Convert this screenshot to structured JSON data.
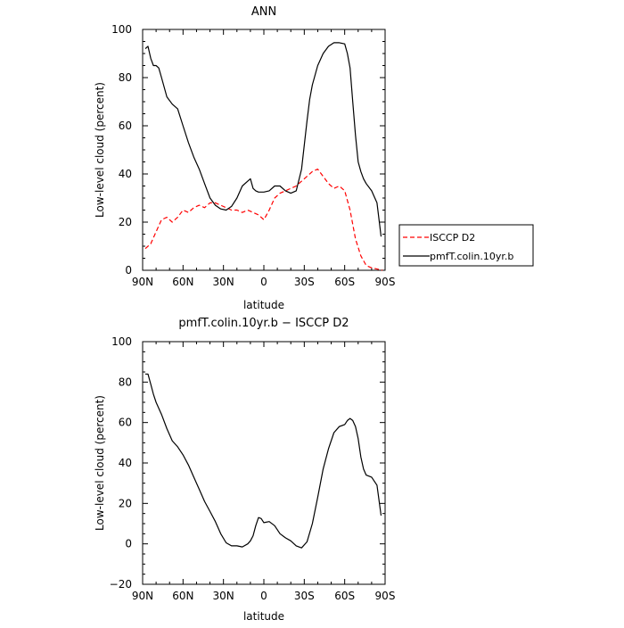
{
  "chart_data": [
    {
      "type": "line",
      "title": "ANN",
      "xlabel": "latitude",
      "ylabel": "Low-level cloud (percent)",
      "xlim": [
        90,
        -90
      ],
      "ylim": [
        0,
        100
      ],
      "x_ticks": [
        90,
        60,
        30,
        0,
        -30,
        -60,
        -90
      ],
      "x_tick_labels": [
        "90N",
        "60N",
        "30N",
        "0",
        "30S",
        "60S",
        "90S"
      ],
      "y_ticks": [
        0,
        20,
        40,
        60,
        80,
        100
      ],
      "y_tick_labels": [
        "0",
        "20",
        "40",
        "60",
        "80",
        "100"
      ],
      "legend_position": "right",
      "series": [
        {
          "name": "ISCCP D2",
          "color": "#ff0000",
          "dash": "dashed",
          "x": [
            88,
            84,
            80,
            76,
            72,
            68,
            64,
            60,
            56,
            52,
            48,
            44,
            40,
            36,
            32,
            28,
            24,
            20,
            16,
            12,
            8,
            4,
            0,
            -4,
            -8,
            -12,
            -16,
            -20,
            -24,
            -28,
            -32,
            -36,
            -40,
            -44,
            -48,
            -52,
            -56,
            -60,
            -64,
            -68,
            -72,
            -76,
            -80,
            -84,
            -88
          ],
          "y": [
            9,
            11,
            16,
            21,
            22,
            20,
            22,
            25,
            24,
            26,
            27,
            26,
            28,
            28,
            27,
            26,
            25,
            25,
            24,
            25,
            24,
            23,
            21,
            25,
            30,
            32,
            33,
            34,
            35,
            37,
            39,
            41,
            42,
            39,
            36,
            34,
            35,
            33,
            25,
            13,
            6,
            2,
            1,
            0.5,
            0
          ]
        },
        {
          "name": "pmfT.colin.10yr.b",
          "color": "#000000",
          "dash": "solid",
          "x": [
            88,
            86,
            84,
            82,
            80,
            78,
            76,
            72,
            68,
            64,
            60,
            56,
            52,
            48,
            44,
            40,
            36,
            32,
            28,
            24,
            20,
            16,
            12,
            10,
            8,
            6,
            4,
            2,
            0,
            -4,
            -8,
            -12,
            -16,
            -20,
            -24,
            -28,
            -32,
            -34,
            -36,
            -40,
            -44,
            -48,
            -52,
            -56,
            -60,
            -62,
            -64,
            -66,
            -68,
            -70,
            -72,
            -74,
            -76,
            -80,
            -84,
            -87
          ],
          "y": [
            92,
            93,
            88,
            85,
            85,
            84,
            80,
            72,
            69,
            67,
            60,
            53,
            47,
            42,
            36,
            30,
            27,
            25.5,
            25,
            26.5,
            30,
            35,
            37,
            38,
            34,
            33,
            32.5,
            32.5,
            32.5,
            33,
            35,
            35,
            33,
            32,
            33,
            42,
            62,
            71,
            77,
            85,
            90,
            93,
            94.5,
            94.5,
            94,
            90,
            84,
            70,
            56,
            45,
            41,
            38,
            36,
            33,
            28,
            14
          ]
        }
      ]
    },
    {
      "type": "line",
      "title": "pmfT.colin.10yr.b − ISCCP D2",
      "xlabel": "latitude",
      "ylabel": "Low-level cloud (percent)",
      "xlim": [
        90,
        -90
      ],
      "ylim": [
        -20,
        100
      ],
      "x_ticks": [
        90,
        60,
        30,
        0,
        -30,
        -60,
        -90
      ],
      "x_tick_labels": [
        "90N",
        "60N",
        "30N",
        "0",
        "30S",
        "60S",
        "90S"
      ],
      "y_ticks": [
        -20,
        0,
        20,
        40,
        60,
        80,
        100
      ],
      "y_tick_labels": [
        "−20",
        "0",
        "20",
        "40",
        "60",
        "80",
        "100"
      ],
      "series": [
        {
          "color": "#000000",
          "dash": "solid",
          "x": [
            88,
            86,
            84,
            82,
            80,
            76,
            72,
            68,
            64,
            60,
            56,
            52,
            48,
            44,
            40,
            36,
            32,
            28,
            24,
            20,
            16,
            12,
            10,
            8,
            6,
            4,
            2,
            0,
            -4,
            -8,
            -12,
            -16,
            -20,
            -24,
            -28,
            -32,
            -36,
            -40,
            -44,
            -48,
            -52,
            -56,
            -60,
            -62,
            -64,
            -66,
            -68,
            -70,
            -72,
            -74,
            -76,
            -80,
            -84,
            -87
          ],
          "y": [
            84,
            84,
            79,
            74,
            70,
            64,
            57,
            51,
            48,
            44,
            39,
            33,
            27,
            21,
            16,
            11,
            5,
            0.5,
            -1,
            -1,
            -1.5,
            0,
            1.5,
            4,
            9,
            13,
            12.5,
            10.5,
            11,
            9,
            5,
            3,
            1.5,
            -1,
            -2,
            1,
            10,
            23,
            37,
            47,
            55,
            58,
            59,
            61,
            62,
            61,
            58,
            52,
            43,
            37,
            34,
            33,
            29,
            14
          ]
        }
      ]
    }
  ]
}
